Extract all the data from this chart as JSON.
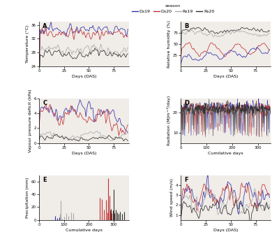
{
  "colors": {
    "Ds19": "#3030aa",
    "Ds20": "#c03030",
    "Rs19": "#aaaaaa",
    "Rs20": "#303030"
  },
  "panel_A": {
    "ylabel": "Temperature (°C)",
    "xlabel": "Days (DAS)",
    "xlim": [
      0,
      90
    ],
    "ylim": [
      24,
      37
    ],
    "yticks": [
      24,
      28,
      32,
      36
    ],
    "xticks": [
      0,
      25,
      50,
      75
    ]
  },
  "panel_B": {
    "ylabel": "Relative humidity (%)",
    "xlabel": "Days (DAS)",
    "xlim": [
      0,
      90
    ],
    "ylim": [
      0,
      100
    ],
    "yticks": [
      25,
      50,
      75
    ],
    "xticks": [
      0,
      25,
      50,
      75
    ]
  },
  "panel_C": {
    "ylabel": "Vapour pressure deficit (kPa)",
    "xlabel": "Days (DAS)",
    "xlim": [
      0,
      90
    ],
    "ylim": [
      0,
      6
    ],
    "yticks": [
      0,
      2,
      4,
      6
    ],
    "xticks": [
      0,
      25,
      50,
      75
    ]
  },
  "panel_D": {
    "ylabel": "Radiation (MJm^²/day)",
    "xlabel": "Cumilative days",
    "xlim": [
      0,
      350
    ],
    "ylim": [
      5,
      27
    ],
    "yticks": [
      10,
      20
    ],
    "xticks": [
      0,
      100,
      200,
      300
    ]
  },
  "panel_E": {
    "ylabel": "Precipitation (mm)",
    "xlabel": "Cumulative days",
    "xlim": [
      0,
      360
    ],
    "ylim": [
      0,
      70
    ],
    "yticks": [
      0,
      20,
      40,
      60
    ],
    "xticks": [
      0,
      100,
      200,
      300
    ]
  },
  "panel_F": {
    "ylabel": "Wind speed (m/s)",
    "xlabel": "Days (DAS)",
    "xlim": [
      0,
      90
    ],
    "ylim": [
      0.5,
      5
    ],
    "yticks": [
      1,
      2,
      3,
      4
    ],
    "xticks": [
      0,
      25,
      50,
      75
    ]
  },
  "background_color": "#f0ece8",
  "linewidth": 0.55
}
